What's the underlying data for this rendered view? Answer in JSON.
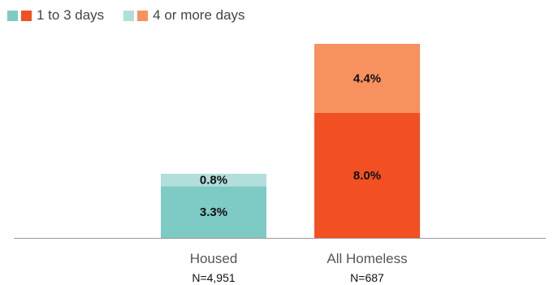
{
  "legend": [
    {
      "label": "1 to 3 days",
      "colors": [
        "#7ecac5",
        "#f25022"
      ]
    },
    {
      "label": "4 or more days",
      "colors": [
        "#b2dedb",
        "#f7915f"
      ]
    }
  ],
  "chart_data": {
    "type": "bar",
    "stacked": true,
    "categories": [
      "Housed",
      "All Homeless"
    ],
    "category_notes": [
      "N=4,951",
      "N=687"
    ],
    "series": [
      {
        "name": "1 to 3 days",
        "values": [
          3.3,
          8.0
        ],
        "value_labels": [
          "3.3%",
          "8.0%"
        ],
        "colors": [
          "#7ecac5",
          "#f25022"
        ]
      },
      {
        "name": "4 or more days",
        "values": [
          0.8,
          4.4
        ],
        "value_labels": [
          "0.8%",
          "4.4%"
        ],
        "colors": [
          "#b2dedb",
          "#f7915f"
        ]
      }
    ],
    "title": "",
    "xlabel": "",
    "ylabel": "",
    "ylim": [
      0,
      12.4
    ],
    "grid": false,
    "legend_position": "top-left"
  }
}
